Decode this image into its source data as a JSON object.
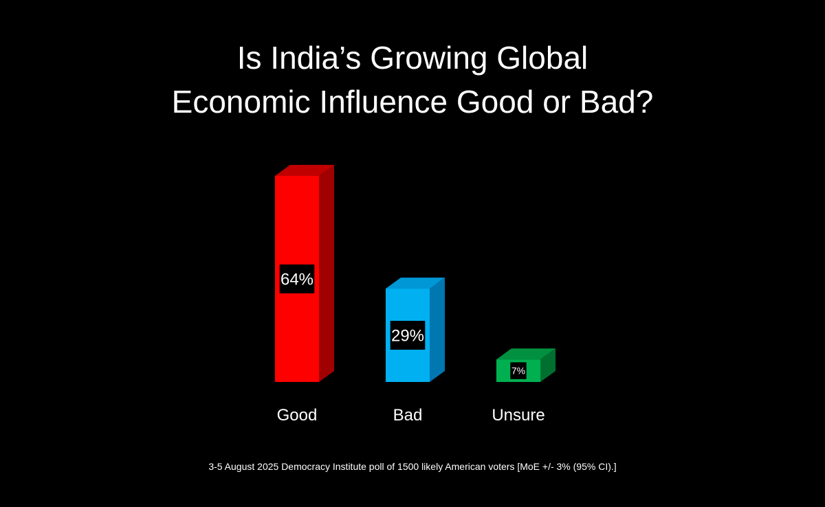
{
  "title_lines": [
    "Is India’s Growing Global",
    "Economic Influence Good or Bad?"
  ],
  "footnote": "3-5 August 2025 Democracy Institute poll of 1500 likely American voters [MoE +/- 3% (95% CI).]",
  "chart_data": {
    "type": "bar",
    "style": "3d",
    "title": "Is India’s Growing Global Economic Influence Good or Bad?",
    "categories": [
      "Good",
      "Bad",
      "Unsure"
    ],
    "values": [
      64,
      29,
      7
    ],
    "value_labels": [
      "64%",
      "29%",
      "7%"
    ],
    "unit": "%",
    "colors": [
      {
        "front": "#ff0000",
        "top": "#c00000",
        "side": "#a00000"
      },
      {
        "front": "#00b0f0",
        "top": "#0097d6",
        "side": "#0077b0"
      },
      {
        "front": "#00b050",
        "top": "#009040",
        "side": "#007030"
      }
    ],
    "ylim": [
      0,
      64
    ],
    "grid": false,
    "legend": "none"
  }
}
